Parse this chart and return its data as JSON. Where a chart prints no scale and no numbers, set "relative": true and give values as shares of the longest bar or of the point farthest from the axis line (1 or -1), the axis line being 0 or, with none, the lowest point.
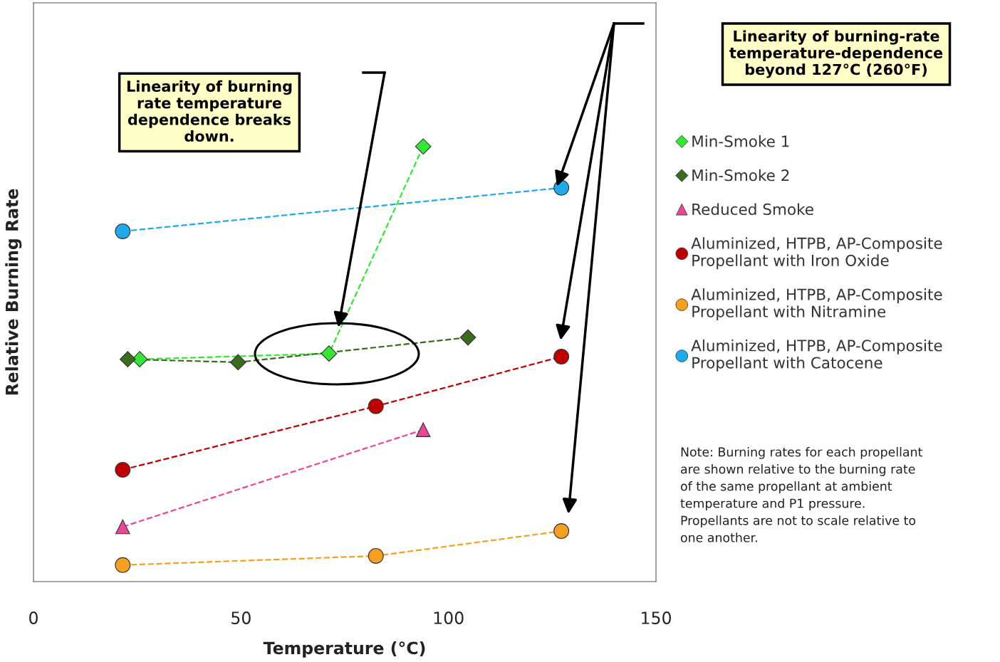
{
  "chart_data": {
    "type": "line",
    "relative": true,
    "xlabel": "Temperature (°C)",
    "ylabel": "Relative Burning Rate",
    "xlim": [
      0,
      150
    ],
    "xticks": [
      0,
      50,
      100,
      150
    ],
    "grid": false,
    "legend": "right",
    "line_style": "dashed",
    "series": [
      {
        "name": "Min-Smoke 1",
        "color": "#33e833",
        "marker": "diamond",
        "x": [
          25.6,
          71.2,
          93.9
        ],
        "values": [
          0.511,
          0.524,
          1
        ]
      },
      {
        "name": "Min-Smoke 2",
        "color": "#3a6b1e",
        "marker": "diamond",
        "x": [
          22.7,
          49.3,
          104.7
        ],
        "values": [
          0.511,
          0.504,
          0.561
        ]
      },
      {
        "name": "Reduced Smoke",
        "color": "#e8479a",
        "marker": "triangle",
        "x": [
          21.5,
          93.9
        ],
        "values": [
          0.126,
          0.349
        ]
      },
      {
        "name": "Aluminized, HTPB, AP-Composite\nPropellant with Iron Oxide",
        "color": "#c00000",
        "marker": "circle",
        "x": [
          21.5,
          82.5,
          127.2
        ],
        "values": [
          0.257,
          0.403,
          0.517
        ]
      },
      {
        "name": "Aluminized, HTPB, AP-Composite\nPropellant with Nitramine",
        "color": "#f5a020",
        "marker": "circle",
        "x": [
          21.5,
          82.5,
          127.2
        ],
        "values": [
          0.038,
          0.059,
          0.116
        ]
      },
      {
        "name": "Aluminized, HTPB, AP-Composite\nPropellant with Catocene",
        "color": "#1eaaea",
        "marker": "circle",
        "x": [
          21.5,
          127.2
        ],
        "values": [
          0.805,
          0.905
        ]
      }
    ],
    "annotations": [
      "Linearity of burning\nrate temperature\ndependence breaks\ndown.",
      "Linearity of burning-rate\ntemperature-dependence\nbeyond 127°C (260°F)",
      "Note: Burning rates for each propellant\nare shown relative to the burning rate\nof the same propellant at ambient\ntemperature and P1 pressure.\nPropellants are not to scale relative to\none another."
    ]
  }
}
